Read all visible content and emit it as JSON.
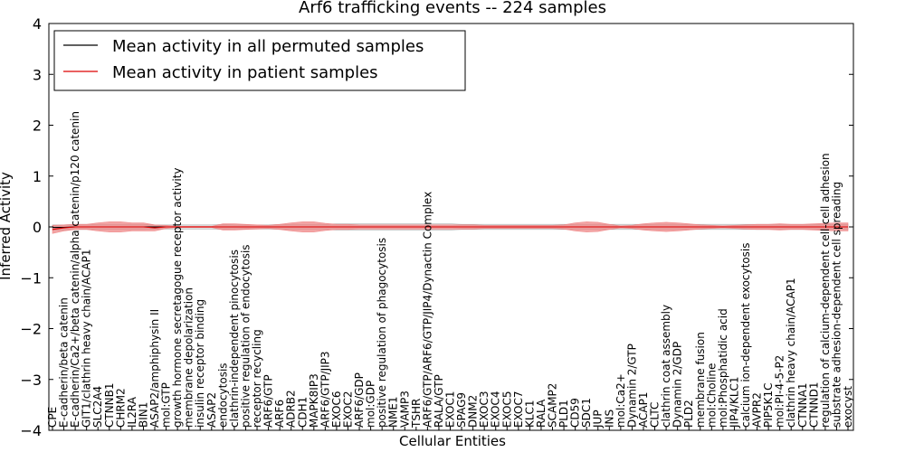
{
  "chart_data": {
    "type": "line",
    "title": "Arf6 trafficking events -- 224 samples",
    "xlabel": "Cellular Entities",
    "ylabel": "Inferred Activity",
    "ylim": [
      -4,
      4
    ],
    "yticks": [
      -4,
      -3,
      -2,
      -1,
      0,
      1,
      2,
      3,
      4
    ],
    "legend_position": "top-left",
    "categories": [
      "CPE",
      "E-cadherin/beta catenin",
      "E-cadherin/Ca2+/beta catenin/alpha catenin/p120 catenin",
      "GIT1/clathrin heavy chain/ACAP1",
      "SLC2A4",
      "CTNNB1",
      "CHRM2",
      "IL2RA",
      "BIN1",
      "ASAP2/amphiphysin II",
      "mol:GTP",
      "growth hormone secretagogue receptor activity",
      "membrane depolarization",
      "insulin receptor binding",
      "ASAP2",
      "endocytosis",
      "clathrin-independent pinocytosis",
      "positive regulation of endocytosis",
      "receptor recycling",
      "ARF6/GTP",
      "ARF6",
      "ADRB2",
      "CDH1",
      "MAPK8IP3",
      "ARF6/GTP/JIP3",
      "EXOC6",
      "EXOC2",
      "ARF6/GDP",
      "mol:GDP",
      "positive regulation of phagocytosis",
      "NME1",
      "VAMP3",
      "TSHR",
      "ARF6/GTP/ARF6/GTP/JIP4/Dynactin Complex",
      "RALA/GTP",
      "EXOC1",
      "SPAG9",
      "DNM2",
      "EXOC3",
      "EXOC4",
      "EXOC5",
      "EXOC7",
      "KLC1",
      "RALA",
      "SCAMP2",
      "PLD1",
      "CD59",
      "SDC1",
      "JUP",
      "INS",
      "mol:Ca2+",
      "Dynamin 2/GTP",
      "ACAP1",
      "CLTC",
      "clathrin coat assembly",
      "Dynamin 2/GDP",
      "PLD2",
      "membrane fusion",
      "mol:Choline",
      "mol:Phosphatidic acid",
      "JIP4/KLC1",
      "calcium ion-dependent exocytosis",
      "AVPR2",
      "PIP5K1C",
      "mol:PI-4-5-P2",
      "clathrin heavy chain/ACAP1",
      "CTNNA1",
      "CTNND1",
      "regulation of calcium-dependent cell-cell adhesion",
      "substrate adhesion-dependent cell spreading",
      "exocyst"
    ],
    "series": [
      {
        "name": "Mean activity in all permuted samples",
        "color": "#000000",
        "band_color": "#aaaaaa",
        "mean": [
          -0.01,
          -0.01,
          0,
          0,
          0,
          0,
          0,
          0,
          0,
          0,
          0,
          0,
          0,
          0,
          0,
          0,
          0,
          0,
          0,
          0,
          0,
          0,
          0,
          0,
          0,
          0,
          0,
          0,
          0,
          0,
          0,
          0,
          0,
          0,
          0,
          0,
          0,
          0,
          0,
          0,
          0,
          0,
          0,
          0,
          0,
          0,
          0,
          0,
          0,
          0,
          0,
          0,
          0,
          0,
          0,
          0,
          0,
          0,
          0,
          0,
          0,
          0,
          0,
          0,
          0,
          0,
          0,
          0,
          0,
          0,
          0
        ],
        "band_halfwidth": [
          0.05,
          0.05,
          0.05,
          0.05,
          0.05,
          0.05,
          0.05,
          0.05,
          0.05,
          0.04,
          0.04,
          0.04,
          0.04,
          0.04,
          0.04,
          0.05,
          0.04,
          0.04,
          0.04,
          0.04,
          0.05,
          0.05,
          0.05,
          0.05,
          0.05,
          0.06,
          0.06,
          0.06,
          0.06,
          0.06,
          0.06,
          0.06,
          0.06,
          0.06,
          0.06,
          0.06,
          0.05,
          0.05,
          0.05,
          0.05,
          0.05,
          0.05,
          0.05,
          0.05,
          0.05,
          0.05,
          0.05,
          0.05,
          0.05,
          0.05,
          0.05,
          0.05,
          0.05,
          0.05,
          0.05,
          0.05,
          0.05,
          0.05,
          0.05,
          0.05,
          0.05,
          0.05,
          0.05,
          0.05,
          0.05,
          0.05,
          0.05,
          0.05,
          0.05,
          0.05,
          0.05
        ]
      },
      {
        "name": "Mean activity in patient samples",
        "color": "#dd0000",
        "band_color": "#ee8080",
        "mean": [
          -0.05,
          -0.02,
          0,
          0,
          0,
          0,
          0,
          0,
          0,
          -0.02,
          0,
          0,
          0,
          0,
          0,
          0,
          0,
          0,
          0,
          0,
          0,
          0,
          0,
          0,
          0,
          0,
          0,
          0,
          0,
          0,
          0,
          0,
          0,
          0,
          0,
          0,
          0,
          0,
          0,
          0,
          0,
          0,
          0,
          0,
          0,
          0,
          0,
          0,
          0,
          0,
          0,
          0,
          0,
          0,
          0,
          0,
          0,
          0,
          0,
          0,
          0,
          0,
          0,
          0,
          0,
          0,
          0,
          0,
          0,
          0,
          0
        ],
        "band_halfwidth": [
          0.08,
          0.06,
          0.05,
          0.05,
          0.08,
          0.1,
          0.1,
          0.08,
          0.08,
          0.06,
          0.03,
          0.01,
          0.01,
          0.01,
          0.01,
          0.06,
          0.06,
          0.05,
          0.04,
          0.03,
          0.05,
          0.08,
          0.1,
          0.1,
          0.07,
          0.05,
          0.05,
          0.04,
          0.04,
          0.04,
          0.04,
          0.04,
          0.04,
          0.04,
          0.04,
          0.04,
          0.04,
          0.04,
          0.03,
          0.03,
          0.03,
          0.03,
          0.03,
          0.03,
          0.03,
          0.04,
          0.08,
          0.1,
          0.09,
          0.05,
          0.02,
          0.03,
          0.06,
          0.08,
          0.09,
          0.08,
          0.06,
          0.04,
          0.03,
          0.02,
          0.03,
          0.04,
          0.05,
          0.05,
          0.06,
          0.05,
          0.05,
          0.06,
          0.07,
          0.08,
          0.08
        ]
      }
    ]
  }
}
